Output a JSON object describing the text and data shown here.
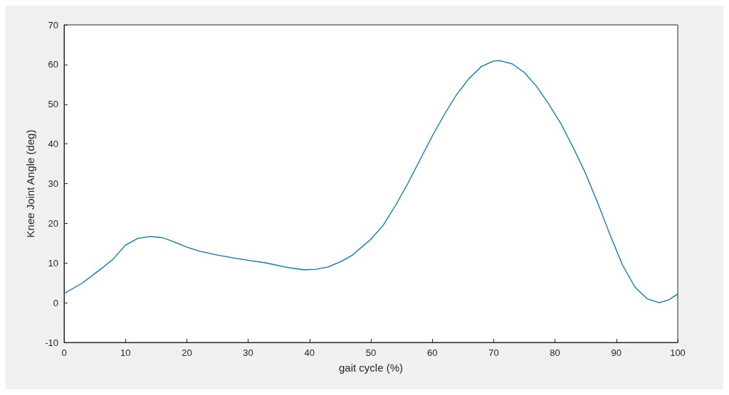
{
  "chart_data": {
    "type": "line",
    "xlabel": "gait cycle (%)",
    "ylabel": "Knee Joint Angle (deg)",
    "x": [
      0,
      3,
      6,
      8,
      10,
      12,
      14,
      16,
      18,
      20,
      22,
      25,
      28,
      30,
      33,
      36,
      39,
      41,
      43,
      45,
      47,
      50,
      52,
      54,
      56,
      58,
      60,
      62,
      64,
      66,
      68,
      70,
      71,
      73,
      75,
      77,
      79,
      81,
      83,
      85,
      87,
      89,
      91,
      93,
      95,
      97,
      98.5,
      100
    ],
    "series": [
      {
        "color": "#0072bd",
        "values": [
          2.3,
          5,
          8.5,
          11,
          14.5,
          16.2,
          16.7,
          16.4,
          15.3,
          14,
          13,
          12,
          11.2,
          10.7,
          10,
          9,
          8.3,
          8.4,
          9,
          10.3,
          12,
          16,
          19.5,
          24.5,
          30,
          36,
          42,
          47.5,
          52.5,
          56.5,
          59.5,
          60.9,
          61,
          60.2,
          58,
          54.5,
          50,
          45,
          39,
          32.5,
          25,
          17,
          9.5,
          4,
          1,
          0,
          0.7,
          2.2
        ]
      }
    ],
    "xlim": [
      0,
      100
    ],
    "xticks": [
      0,
      10,
      20,
      30,
      40,
      50,
      60,
      70,
      80,
      90,
      100
    ],
    "ylim": [
      -10,
      70
    ],
    "yticks": [
      -10,
      0,
      10,
      20,
      30,
      40,
      50,
      60,
      70
    ],
    "marker": "none",
    "line_style": "solid"
  }
}
